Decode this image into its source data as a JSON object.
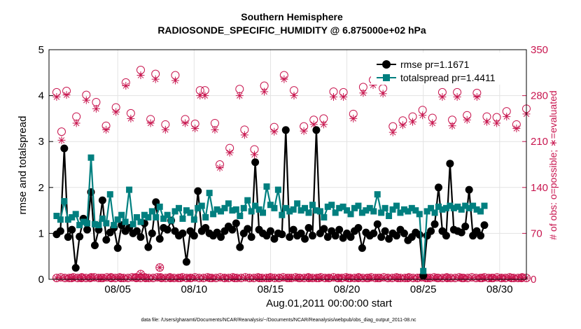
{
  "chart_data": {
    "type": "line",
    "title": "Southern Hemisphere",
    "subtitle": "RADIOSONDE_SPECIFIC_HUMIDITY @ 6.875000e+02 hPa",
    "xlabel": "Aug.01,2011 00:00:00 start",
    "ylabel": "rmse and totalspread",
    "y2label": "# of obs: o=possible; ∗=evaluated",
    "footnote": "data file: /Users/gharamti/Documents/NCAR/Reanalysis/~/Documents/NCAR/Reanalysis/webpub/obs_diag_output_2011-08.nc",
    "ylim": [
      0,
      5
    ],
    "y2lim": [
      0,
      350
    ],
    "xlim": [
      0.5,
      31.75
    ],
    "yticks": [
      "0",
      "1",
      "2",
      "3",
      "4",
      "5"
    ],
    "y2ticks": [
      "0",
      "70",
      "140",
      "210",
      "280",
      "350"
    ],
    "xticks": [
      {
        "day": 5,
        "label": "08/05"
      },
      {
        "day": 10,
        "label": "08/10"
      },
      {
        "day": 15,
        "label": "08/15"
      },
      {
        "day": 20,
        "label": "08/20"
      },
      {
        "day": 25,
        "label": "08/25"
      },
      {
        "day": 30,
        "label": "08/30"
      }
    ],
    "grid": true,
    "legend_position": "top-right",
    "colors": {
      "rmse": "#000000",
      "totalspread": "#007f7f",
      "counts": "#c8164f"
    },
    "times_start_day": 1,
    "times_step_day": 0.25,
    "series": [
      {
        "name": "rmse",
        "legend": "rmse pr=1.1671",
        "marker": "circle",
        "values": [
          0.98,
          1.05,
          2.85,
          0.92,
          1.08,
          0.25,
          0.93,
          1.32,
          1.08,
          1.9,
          0.74,
          1.08,
          1.72,
          0.86,
          1.02,
          1.12,
          0.68,
          1.18,
          1.05,
          1.12,
          1.0,
          1.05,
          0.92,
          1.22,
          0.7,
          1.0,
          1.68,
          0.88,
          1.12,
          1.08,
          1.28,
          1.05,
          0.95,
          1.0,
          0.38,
          1.05,
          0.95,
          1.92,
          1.05,
          1.12,
          1.0,
          0.95,
          1.02,
          0.92,
          1.05,
          1.15,
          1.08,
          1.22,
          0.7,
          1.0,
          1.1,
          0.92,
          2.55,
          1.08,
          1.0,
          0.95,
          1.05,
          0.88,
          1.0,
          0.98,
          3.25,
          0.92,
          1.08,
          0.95,
          1.0,
          0.88,
          1.12,
          0.95,
          3.25,
          1.0,
          1.1,
          0.92,
          1.05,
          0.95,
          1.08,
          0.9,
          1.0,
          0.92,
          1.05,
          1.12,
          0.68,
          1.02,
          0.95,
          1.0,
          1.2,
          0.92,
          1.05,
          0.88,
          1.0,
          0.95,
          1.08,
          1.0,
          0.85,
          0.92,
          1.02,
          0.97,
          0.08,
          0.95,
          1.05,
          1.2,
          2.0,
          1.05,
          0.95,
          2.52,
          1.08,
          1.05,
          1.02,
          1.15,
          1.95,
          0.95,
          1.05,
          0.95,
          1.18
        ]
      },
      {
        "name": "totalspread",
        "legend": "totalspread pr=1.4411",
        "marker": "square",
        "values": [
          1.38,
          1.3,
          1.7,
          1.3,
          1.35,
          1.42,
          1.18,
          1.25,
          1.22,
          2.65,
          1.2,
          1.18,
          1.32,
          1.22,
          1.85,
          1.18,
          1.3,
          1.4,
          1.25,
          1.95,
          1.2,
          1.35,
          1.25,
          1.4,
          1.35,
          1.48,
          1.35,
          1.58,
          1.32,
          1.4,
          1.28,
          1.48,
          1.55,
          1.32,
          1.5,
          1.45,
          1.3,
          1.55,
          1.6,
          1.35,
          1.88,
          1.42,
          1.52,
          1.48,
          1.55,
          1.65,
          1.5,
          1.52,
          1.38,
          1.55,
          1.72,
          1.48,
          1.6,
          1.52,
          1.45,
          2.02,
          1.62,
          1.55,
          1.95,
          1.4,
          1.55,
          1.48,
          1.52,
          1.65,
          1.5,
          1.55,
          1.45,
          1.62,
          1.5,
          1.48,
          1.35,
          1.58,
          1.62,
          1.45,
          1.55,
          1.58,
          1.5,
          1.42,
          1.55,
          1.6,
          1.45,
          1.5,
          1.55,
          1.48,
          1.85,
          1.45,
          1.55,
          1.38,
          1.52,
          1.6,
          1.45,
          1.52,
          1.48,
          1.55,
          1.5,
          1.42,
          0.18,
          1.48,
          1.55,
          1.45,
          1.58,
          1.52,
          1.55,
          1.6,
          1.55,
          1.58,
          1.52,
          1.6,
          1.55,
          1.6,
          1.52,
          1.48,
          1.6
        ]
      }
    ],
    "counts_possible": [
      285,
      225,
      287,
      2,
      248,
      2,
      281,
      3,
      270,
      2,
      234,
      3,
      262,
      2,
      300,
      253,
      3,
      319,
      2,
      244,
      313,
      3,
      236,
      2,
      311,
      2,
      244,
      2,
      237,
      288,
      288,
      2,
      238,
      175,
      2,
      200,
      2,
      290,
      228,
      2,
      198,
      2,
      295,
      2,
      232,
      2,
      311,
      2,
      288,
      2,
      233,
      2,
      243,
      2,
      245,
      2,
      286,
      2,
      285,
      2,
      252,
      2,
      293,
      2,
      304,
      2,
      291,
      2,
      233,
      2,
      242,
      2,
      248,
      2,
      258,
      2,
      246,
      2,
      285,
      2,
      243,
      285,
      2,
      250,
      311,
      284,
      2,
      248,
      2,
      247,
      2,
      256,
      2,
      236,
      2,
      260
    ],
    "counts_evaluated": [
      278,
      212,
      281,
      2,
      238,
      2,
      273,
      3,
      260,
      2,
      228,
      3,
      255,
      2,
      295,
      245,
      3,
      311,
      2,
      238,
      305,
      3,
      228,
      2,
      303,
      2,
      238,
      2,
      230,
      280,
      280,
      2,
      228,
      170,
      2,
      193,
      2,
      280,
      220,
      2,
      190,
      2,
      286,
      2,
      225,
      2,
      305,
      2,
      280,
      2,
      226,
      2,
      236,
      2,
      236,
      2,
      278,
      2,
      278,
      2,
      245,
      2,
      284,
      2,
      296,
      2,
      283,
      2,
      224,
      2,
      235,
      2,
      240,
      2,
      250,
      2,
      238,
      2,
      278,
      2,
      234,
      278,
      2,
      243,
      304,
      278,
      2,
      240,
      2,
      238,
      2,
      248,
      2,
      230,
      2,
      252
    ],
    "counts_low_possible": [
      2,
      3,
      2,
      2,
      3,
      2,
      3,
      2,
      2,
      3,
      2,
      2,
      3,
      2,
      2,
      3,
      2,
      2,
      3,
      2,
      2,
      3,
      2,
      2,
      3,
      2,
      2,
      3,
      2,
      2,
      3,
      2,
      2,
      3,
      2,
      2,
      3,
      2,
      2,
      3,
      2,
      2,
      3,
      2,
      2,
      3,
      2,
      2,
      3,
      2,
      2,
      3,
      2,
      2,
      3,
      2,
      2,
      3,
      2,
      2,
      3,
      2,
      2,
      3,
      2,
      2,
      3,
      2,
      2,
      3,
      2,
      2,
      3,
      2,
      2,
      3,
      2,
      2,
      3,
      2,
      2,
      3,
      2,
      2,
      3,
      2,
      2,
      3,
      2,
      2,
      3,
      2,
      2,
      3,
      2,
      2,
      3,
      2,
      2,
      3,
      2,
      2,
      3,
      2,
      2,
      3,
      2,
      2,
      3,
      2,
      2,
      3,
      2
    ],
    "counts_low_extra": [
      {
        "day": 6.5,
        "value": 8
      },
      {
        "day": 7.75,
        "value": 18
      }
    ]
  }
}
